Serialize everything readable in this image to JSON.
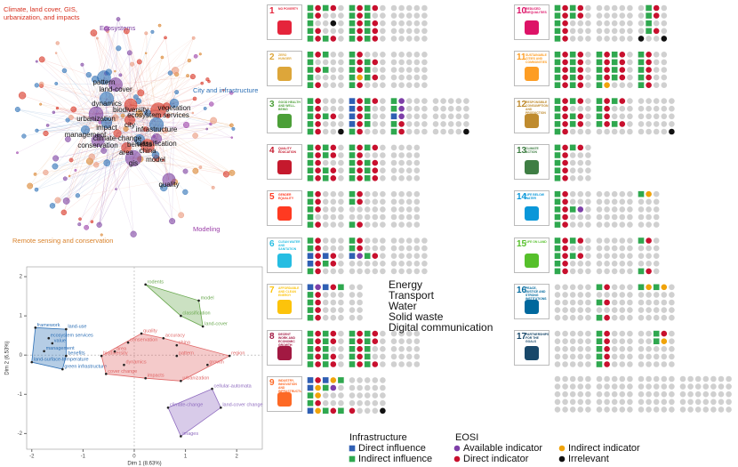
{
  "network": {
    "cluster_labels": [
      {
        "text": "Climate, land cover, GIS, urbanization, and impacts",
        "color": "#d7301f"
      },
      {
        "text": "Ecosystems",
        "color": "#7b3fa0"
      },
      {
        "text": "City and infrastructure",
        "color": "#2c6fb5"
      },
      {
        "text": "Remote sensing and conservation",
        "color": "#d9822b"
      },
      {
        "text": "Modeling",
        "color": "#9b3fa8"
      }
    ],
    "node_labels": [
      "pattern",
      "land-cover",
      "dynamics",
      "biodiversity",
      "vegetation",
      "ecosystem services",
      "city",
      "urbanization",
      "impact",
      "infrastructure",
      "management",
      "climate-change",
      "conservation",
      "benefits",
      "classification",
      "china",
      "area",
      "gis",
      "model",
      "quality"
    ]
  },
  "chart_data": {
    "type": "scatter",
    "xlabel": "Dim 1 (8.63%)",
    "ylabel": "Dim 2 (6.53%)",
    "xlim": [
      -2.1,
      2.5
    ],
    "ylim": [
      -2.4,
      2.25
    ],
    "xticks": [
      -2,
      -1,
      0,
      1,
      2
    ],
    "yticks": [
      -2,
      -1,
      0,
      1,
      2
    ],
    "series": [
      {
        "color": "#2c6fb5",
        "labels": [
          "framework",
          "land-use",
          "ecosystem services",
          "value",
          "management",
          "benefits",
          "land-surface-temperature",
          "green infrastructure"
        ],
        "x": [
          -1.93,
          -1.33,
          -1.67,
          -1.6,
          -1.76,
          -1.33,
          -2.0,
          -1.4
        ],
        "y": [
          0.7,
          0.66,
          0.43,
          0.3,
          0.1,
          -0.02,
          -0.18,
          -0.36
        ]
      },
      {
        "color": "#6aa84f",
        "labels": [
          "rodents",
          "model",
          "classification",
          "land-cover"
        ],
        "x": [
          0.22,
          1.26,
          0.91,
          1.34
        ],
        "y": [
          1.8,
          1.39,
          1.0,
          0.73
        ]
      },
      {
        "color": "#e06666",
        "labels": [
          "quality",
          "conservation",
          "accuracy",
          "china",
          "area",
          "biodiversity",
          "pattern",
          "growth",
          "region",
          "cover change",
          "impacts",
          "urbanization",
          "dynamics"
        ],
        "x": [
          0.14,
          -0.12,
          0.57,
          0.83,
          -0.38,
          -0.64,
          0.83,
          1.43,
          1.86,
          -0.55,
          0.22,
          0.91,
          -0.2
        ],
        "y": [
          0.55,
          0.32,
          0.43,
          0.25,
          0.09,
          -0.02,
          -0.02,
          -0.25,
          -0.02,
          -0.48,
          -0.59,
          -0.66,
          -0.25
        ]
      },
      {
        "color": "#8e6bbf",
        "labels": [
          "cellular-automata",
          "climate-change",
          "land-cover change",
          "images"
        ],
        "x": [
          1.52,
          0.66,
          1.69,
          0.91
        ],
        "y": [
          -0.86,
          -1.34,
          -1.34,
          -2.07
        ]
      }
    ]
  },
  "infrastructure": [
    "Energy",
    "Transport",
    "Water",
    "Solid waste",
    "Digital communication"
  ],
  "codes": {
    "B": {
      "shape": "square",
      "color": "#2f5fb3"
    },
    "G": {
      "shape": "square",
      "color": "#2fa84f"
    },
    "P": {
      "shape": "circle",
      "color": "#7e3fa8"
    },
    "R": {
      "shape": "circle",
      "color": "#c8102e"
    },
    "O": {
      "shape": "circle",
      "color": "#f0a30a"
    },
    "K": {
      "shape": "circle",
      "color": "#111111"
    },
    "N": {
      "shape": "circle",
      "color": "#d0d0d0"
    }
  },
  "sdgs": [
    {
      "num": "1",
      "name": "NO POVERTY",
      "color": "#e5243b",
      "rows": [
        "GRGRN-GRGRN-NNNNN",
        "GRNNN-GRGNN-NNNNN",
        "GNNKN-GRGRN-NNNNN",
        "GRNNN-GRGRN-NNNNN",
        "GRGRN-GRGRN-NNNNN"
      ]
    },
    {
      "num": "2",
      "name": "ZERO HUNGER",
      "color": "#dda63a",
      "rows": [
        "GRGNN-GRNNN-NNNNN",
        "GNNNN-GRGRN-NNNNN",
        "GRGNN-GRGNN-NNNNN",
        "GNNNN-GOGRN-NNNNN",
        "GRNNN-GRNNN-NNNNN"
      ]
    },
    {
      "num": "3",
      "name": "GOOD HEALTH AND WELL-BEING",
      "color": "#4c9f38",
      "rows": [
        "GRNNN-BRGRN-GPNNN-NNNNN",
        "GRNNN-BRGNN-GPNNN-NNNNN",
        "GRGRN-BRGNN-BPNNN-NNNNN",
        "GRNNN-BRGNN-GRNNN-NNNNN",
        "GRNNK-GRNNN-GRNNN-NNNNK"
      ]
    },
    {
      "num": "4",
      "name": "QUALITY EDUCATION",
      "color": "#c5192d",
      "rows": [
        "GRGRN-GRGRN-NNNN",
        "GRGRN-GRNNN-NNNN",
        "GRNNN-GRGRN-NNNN",
        "GRGRN-GRGRN-NNNN",
        "GRGRN-GRGRN-NNNN"
      ]
    },
    {
      "num": "5",
      "name": "GENDER EQUALITY",
      "color": "#ff3a21",
      "rows": [
        "GRNNN-GRNNN-NNNN",
        "GRNNN-GRNNN-NNNN",
        "GRNNN-NNNNN-NNNN",
        "GNNNN-NNNNN-NNNN",
        "GRNNN-GRNNN-NNNN"
      ]
    },
    {
      "num": "6",
      "name": "CLEAN WATER AND SANITATION",
      "color": "#26bde2",
      "rows": [
        "GRNNN-GRNNN-NNNNN",
        "GRNNN-GRNNN-NNNNN",
        "BRBRN-BPGRN-NNNNN",
        "BRGRN-NNNNN-NNNNN",
        "GRNNN-NNNNN-NNNNN"
      ]
    },
    {
      "num": "7",
      "name": "AFFORDABLE AND CLEAN ENERGY",
      "color": "#fcc30b",
      "rows": [
        "BPBRG-NN",
        "GRNNN-NN",
        "GRNNN-NN",
        "GRNNN-NN",
        "GRNNN-NN"
      ]
    },
    {
      "num": "8",
      "name": "DECENT WORK AND ECONOMIC GROWTH",
      "color": "#a21942",
      "rows": [
        "GRGRN-GRGRN-NNNN",
        "GRGRN-GRGRN-NNNN",
        "GRGNN-GRGNN-NNNN",
        "GRGRN-GRGNN-NNNN",
        "GRGRN-GRGRN-NNNN"
      ]
    },
    {
      "num": "9",
      "name": "INDUSTRY, INNOVATION AND INFRASTRUCTURE",
      "color": "#fd6925",
      "rows": [
        "BRBOG-NNNNN",
        "BOGPN-NNNNN",
        "GONNN-NNNNN",
        "GRNNN-NNNNN",
        "BOGRG-RNNNK"
      ]
    },
    {
      "num": "10",
      "name": "REDUCED INEQUALITIES",
      "color": "#dd1367",
      "rows": [
        "GRGRN-NNNNN-NGRN",
        "GRGRN-NNNNN-NGRN",
        "GRNNN-NNNNN-NGNN",
        "GRNNN-NNNNN-NGRN",
        "GRNNN-NNNNN-KNNK"
      ]
    },
    {
      "num": "11",
      "name": "SUSTAINABLE CITIES AND COMMUNITIES",
      "color": "#fd9d24",
      "rows": [
        "GRGRN-GRGRN-GRNN",
        "GRGRN-GRGRN-GRNN",
        "GRGRN-GRGRN-GRNN",
        "GRGRN-GRGRN-GRNN",
        "GRGRN-GONNN-GRNN"
      ]
    },
    {
      "num": "12",
      "name": "RESPONSIBLE CONSUMPTION AND PRODUCTION",
      "color": "#bf8b2e",
      "rows": [
        "GRGRN-GRGRN-NNNNN",
        "GRNNN-GRNNN-NNNNN",
        "GRGRN-GRNNN-NNNNN",
        "GRGRN-GRGRN-NNNNN",
        "GRNNN-NNNNN-NNNNK"
      ]
    },
    {
      "num": "13",
      "name": "CLIMATE ACTION",
      "color": "#3f7e44",
      "rows": [
        "GRGRN",
        "GRNNN",
        "GRNNN",
        "GRNNN",
        "GRNNN"
      ]
    },
    {
      "num": "14",
      "name": "LIFE BELOW WATER",
      "color": "#0a97d9",
      "rows": [
        "GRNNN-NNNNN-GON",
        "GRNNN-NNNNN-NNN",
        "GRGPN-NNNNN-NNN",
        "GRNNN-NNNNN-NNN",
        "GRNNN-NNNNN-NNN"
      ]
    },
    {
      "num": "15",
      "name": "LIFE ON LAND",
      "color": "#56c02b",
      "rows": [
        "GRGRN-NNNNN-GRN",
        "GRNNN-NNNNN-NNN",
        "GRGRN-NNNNN-NNN",
        "GRNNN-NNNNN-NNN",
        "GRNNN-NNNNN-GRN"
      ]
    },
    {
      "num": "16",
      "name": "PEACE, JUSTICE AND STRONG INSTITUTIONS",
      "color": "#00689d",
      "rows": [
        "NNNNN-GRNNN-GOGON",
        "NNNNN-NNNNN-NNNNN",
        "NNNNN-GRNNN-NNNNN",
        "NNNNN-NNNNN-NNNNN",
        "NNNNN-GRNNN-NNNNN"
      ]
    },
    {
      "num": "17",
      "name": "PARTNERSHIPS FOR THE GOALS",
      "color": "#19486a",
      "rows": [
        "NNNNN-GRNNN-NNGRN",
        "NNNNN-GRNNN-NNGON",
        "NNNNN-GRNNN-NNNNN",
        "NNNNN-GRNNN-NNNNN",
        "NNNNN-GRNNN-NNNNN"
      ]
    }
  ],
  "legend": {
    "infrastructure_title": "Infrastructure",
    "eosi_title": "EOSI",
    "items": [
      {
        "code": "B",
        "text": "Direct influence"
      },
      {
        "code": "G",
        "text": "Indirect influence"
      },
      {
        "code": "P",
        "text": "Available indicator"
      },
      {
        "code": "R",
        "text": "Direct indicator"
      },
      {
        "code": "O",
        "text": "Indirect indicator"
      },
      {
        "code": "K",
        "text": "Irrelevant"
      }
    ]
  }
}
